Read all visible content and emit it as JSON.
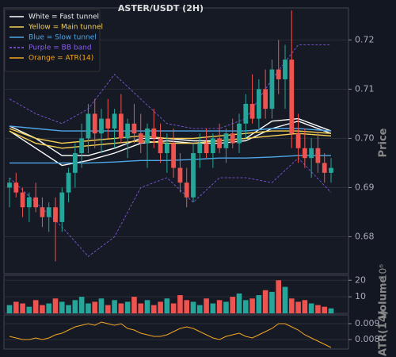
{
  "chart_data": [
    {
      "type": "candlestick",
      "title": "ASTER/USDT (2H)",
      "y_label": "Price",
      "up_color": "#26a69a",
      "down_color": "#ef5350",
      "open": [
        0.69,
        0.691,
        0.689,
        0.686,
        0.688,
        0.686,
        0.684,
        0.686,
        0.683,
        0.689,
        0.693,
        0.697,
        0.7,
        0.705,
        0.701,
        0.704,
        0.702,
        0.705,
        0.7,
        0.703,
        0.701,
        0.699,
        0.702,
        0.7,
        0.697,
        0.699,
        0.694,
        0.691,
        0.688,
        0.697,
        0.699,
        0.697,
        0.7,
        0.698,
        0.701,
        0.699,
        0.703,
        0.707,
        0.704,
        0.71,
        0.706,
        0.714,
        0.712,
        0.716,
        0.701,
        0.698,
        0.696,
        0.698,
        0.695,
        0.693
      ],
      "high": [
        0.692,
        0.693,
        0.69,
        0.689,
        0.691,
        0.688,
        0.687,
        0.688,
        0.69,
        0.694,
        0.699,
        0.703,
        0.707,
        0.708,
        0.706,
        0.708,
        0.706,
        0.709,
        0.704,
        0.707,
        0.705,
        0.703,
        0.706,
        0.703,
        0.701,
        0.702,
        0.697,
        0.694,
        0.699,
        0.701,
        0.702,
        0.701,
        0.703,
        0.702,
        0.704,
        0.705,
        0.709,
        0.713,
        0.712,
        0.714,
        0.716,
        0.72,
        0.719,
        0.726,
        0.705,
        0.702,
        0.7,
        0.701,
        0.697,
        0.696
      ],
      "low": [
        0.686,
        0.688,
        0.684,
        0.683,
        0.685,
        0.682,
        0.681,
        0.675,
        0.681,
        0.687,
        0.69,
        0.694,
        0.697,
        0.698,
        0.697,
        0.7,
        0.698,
        0.699,
        0.696,
        0.699,
        0.697,
        0.694,
        0.698,
        0.695,
        0.693,
        0.692,
        0.689,
        0.686,
        0.687,
        0.694,
        0.696,
        0.694,
        0.697,
        0.695,
        0.698,
        0.697,
        0.7,
        0.703,
        0.702,
        0.704,
        0.704,
        0.709,
        0.706,
        0.698,
        0.695,
        0.694,
        0.692,
        0.693,
        0.691,
        0.691
      ],
      "close": [
        0.691,
        0.689,
        0.686,
        0.688,
        0.686,
        0.684,
        0.686,
        0.683,
        0.689,
        0.693,
        0.697,
        0.7,
        0.705,
        0.701,
        0.704,
        0.702,
        0.705,
        0.7,
        0.703,
        0.701,
        0.699,
        0.702,
        0.7,
        0.697,
        0.699,
        0.694,
        0.691,
        0.688,
        0.697,
        0.699,
        0.697,
        0.7,
        0.698,
        0.701,
        0.699,
        0.703,
        0.707,
        0.704,
        0.71,
        0.706,
        0.714,
        0.712,
        0.716,
        0.701,
        0.698,
        0.696,
        0.698,
        0.695,
        0.693,
        0.694
      ],
      "line_x": [
        0,
        4,
        8,
        12,
        16,
        20,
        24,
        28,
        32,
        36,
        40,
        44,
        49
      ],
      "lines": [
        {
          "name": "White = Fast tunnel",
          "color": "#ffffff",
          "dashed": false,
          "upper": [
            0.7025,
            0.7,
            0.6965,
            0.6965,
            0.698,
            0.7,
            0.7,
            0.6995,
            0.6995,
            0.7,
            0.7035,
            0.704,
            0.7015
          ],
          "lower": [
            0.7015,
            0.698,
            0.6945,
            0.6955,
            0.697,
            0.699,
            0.6995,
            0.699,
            0.699,
            0.6995,
            0.702,
            0.7035,
            0.701
          ]
        },
        {
          "name": "Yellow = Main tunnel",
          "color": "#f7d154",
          "dashed": false,
          "upper": [
            0.702,
            0.7,
            0.699,
            0.6995,
            0.7,
            0.7005,
            0.7,
            0.7,
            0.7005,
            0.701,
            0.7015,
            0.7015,
            0.701
          ],
          "lower": [
            0.7015,
            0.699,
            0.698,
            0.6985,
            0.699,
            0.6995,
            0.699,
            0.699,
            0.6995,
            0.7,
            0.7005,
            0.701,
            0.7005
          ]
        },
        {
          "name": "Blue = Slow tunnel",
          "color": "#4da6e8",
          "dashed": false,
          "upper": [
            0.7025,
            0.702,
            0.7015,
            0.7015,
            0.7015,
            0.7015,
            0.7015,
            0.7015,
            0.7015,
            0.7015,
            0.702,
            0.702,
            0.7015
          ],
          "lower": [
            0.695,
            0.695,
            0.695,
            0.695,
            0.6952,
            0.6955,
            0.6955,
            0.6957,
            0.696,
            0.696,
            0.6962,
            0.6965,
            0.6965
          ]
        },
        {
          "name": "Purple = BB band",
          "color": "#8a5cf0",
          "dashed": true,
          "upper": [
            0.708,
            0.705,
            0.703,
            0.706,
            0.713,
            0.708,
            0.703,
            0.702,
            0.702,
            0.704,
            0.712,
            0.719,
            0.719
          ],
          "lower": [
            0.692,
            0.687,
            0.682,
            0.676,
            0.68,
            0.69,
            0.692,
            0.687,
            0.692,
            0.692,
            0.691,
            0.696,
            0.689
          ]
        }
      ],
      "ylim": [
        0.6725,
        0.7265
      ],
      "yticks": [
        0.68,
        0.69,
        {
          "value": 0.7,
          "label": "0.70"
        },
        0.71,
        0.72
      ],
      "grid": true
    },
    {
      "type": "bar",
      "y_label": "Volume",
      "offset_label": "10⁶",
      "values": [
        5,
        7,
        6,
        4,
        8,
        5,
        6,
        9,
        7,
        5,
        8,
        10,
        6,
        7,
        9,
        5,
        8,
        6,
        7,
        10,
        6,
        8,
        5,
        7,
        9,
        6,
        11,
        8,
        7,
        5,
        9,
        6,
        8,
        7,
        10,
        12,
        8,
        9,
        11,
        14,
        13,
        20,
        16,
        9,
        7,
        8,
        6,
        5,
        4,
        3
      ],
      "ylim": [
        0,
        23
      ],
      "yticks": [
        10,
        20
      ],
      "grid": true
    },
    {
      "type": "line",
      "y_label": "ATR(14)",
      "series": [
        {
          "name": "Orange = ATR(14)",
          "color": "#f5a623",
          "values": [
            0.0082,
            0.0081,
            0.008,
            0.008,
            0.0081,
            0.008,
            0.0081,
            0.0083,
            0.0084,
            0.0086,
            0.0088,
            0.0089,
            0.009,
            0.0089,
            0.0091,
            0.009,
            0.0089,
            0.009,
            0.0087,
            0.0086,
            0.0084,
            0.0083,
            0.0082,
            0.0082,
            0.0083,
            0.0085,
            0.0087,
            0.0088,
            0.0087,
            0.0085,
            0.0083,
            0.0081,
            0.008,
            0.0082,
            0.0083,
            0.0084,
            0.0082,
            0.0081,
            0.0083,
            0.0085,
            0.0087,
            0.009,
            0.009,
            0.0088,
            0.0086,
            0.0083,
            0.0081,
            0.0079,
            0.0077,
            0.0075
          ]
        }
      ],
      "ylim": [
        0.0074,
        0.00955
      ],
      "yticks": [
        0.008,
        0.009
      ],
      "grid": true
    }
  ]
}
